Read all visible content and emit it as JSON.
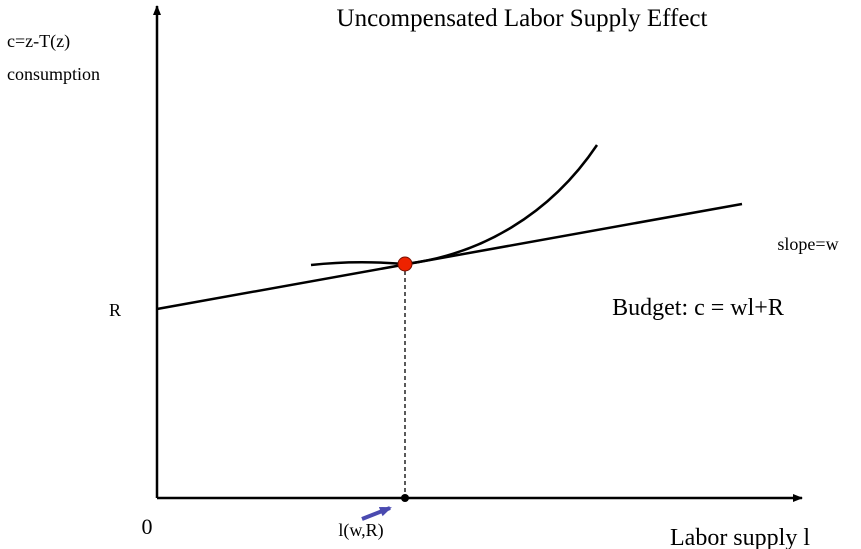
{
  "title": "Uncompensated Labor Supply Effect",
  "y_axis_label": [
    "c=z-T(z)",
    "consumption"
  ],
  "x_axis_label": "Labor supply l",
  "origin_label": "0",
  "intercept_label": "R",
  "slope_label": "slope=w",
  "budget_label": "Budget: c = wl+R",
  "optimum_label": "l(w,R)"
}
